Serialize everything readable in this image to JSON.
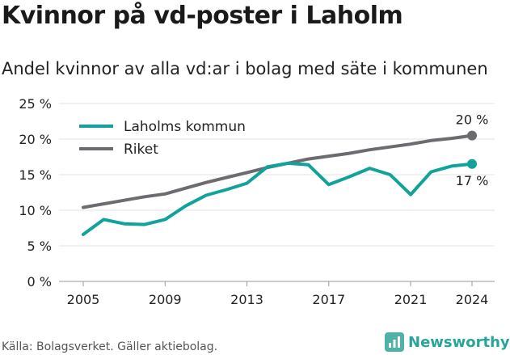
{
  "title": "Kvinnor på vd-poster i Laholm",
  "subtitle": "Andel kvinnor av alla vd:ar i bolag med säte i kommunen",
  "footer": "Källa: Bolagsverket. Gäller aktiebolag.",
  "brand": {
    "name": "Newsworthy",
    "icon": "newsworthy-bar-chart-icon"
  },
  "chart_data": {
    "type": "line",
    "title": "Kvinnor på vd-poster i Laholm",
    "subtitle": "Andel kvinnor av alla vd:ar i bolag med säte i kommunen",
    "x": [
      2005,
      2006,
      2007,
      2008,
      2009,
      2010,
      2011,
      2012,
      2013,
      2014,
      2015,
      2016,
      2017,
      2018,
      2019,
      2020,
      2021,
      2022,
      2023,
      2024
    ],
    "xticks": [
      "2005",
      "2009",
      "2013",
      "2017",
      "2021",
      "2024"
    ],
    "yticks": [
      "0 %",
      "5 %",
      "10 %",
      "15 %",
      "20 %",
      "25 %"
    ],
    "ylim": [
      0,
      25
    ],
    "grid": true,
    "legend_position": "top-left",
    "series": [
      {
        "name": "Laholms kommun",
        "color": "#11a39b",
        "values": [
          6.6,
          8.7,
          8.1,
          8.0,
          8.7,
          10.6,
          12.1,
          12.9,
          13.8,
          16.1,
          16.6,
          16.4,
          13.6,
          14.7,
          15.9,
          15.0,
          12.2,
          15.4,
          16.2,
          16.5
        ],
        "end_label": "17 %"
      },
      {
        "name": "Riket",
        "color": "#6b6b70",
        "values": [
          10.4,
          10.9,
          11.4,
          11.9,
          12.3,
          13.1,
          13.9,
          14.6,
          15.3,
          16.0,
          16.6,
          17.2,
          17.6,
          18.0,
          18.5,
          18.9,
          19.3,
          19.8,
          20.1,
          20.5
        ],
        "end_label": "20 %"
      }
    ]
  }
}
